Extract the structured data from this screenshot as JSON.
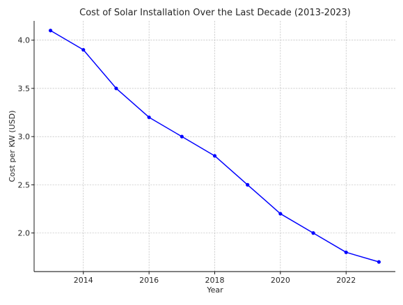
{
  "chart_data": {
    "type": "line",
    "title": "Cost of Solar Installation Over the Last Decade (2013-2023)",
    "xlabel": "Year",
    "ylabel": "Cost per KW (USD)",
    "x": [
      2013,
      2014,
      2015,
      2016,
      2017,
      2018,
      2019,
      2020,
      2021,
      2022,
      2023
    ],
    "series": [
      {
        "values": [
          4.1,
          3.9,
          3.5,
          3.2,
          3.0,
          2.8,
          2.5,
          2.2,
          2.0,
          1.8,
          1.7
        ],
        "color": "#0000ff",
        "marker": "circle"
      }
    ],
    "xlim": [
      2012.5,
      2023.5
    ],
    "ylim": [
      1.6,
      4.2
    ],
    "xticks": [
      2014,
      2016,
      2018,
      2020,
      2022
    ],
    "yticks": [
      2.0,
      2.5,
      3.0,
      3.5,
      4.0
    ],
    "ytick_labels": [
      "2.0",
      "2.5",
      "3.0",
      "3.5",
      "4.0"
    ],
    "grid": true,
    "legend": false
  }
}
